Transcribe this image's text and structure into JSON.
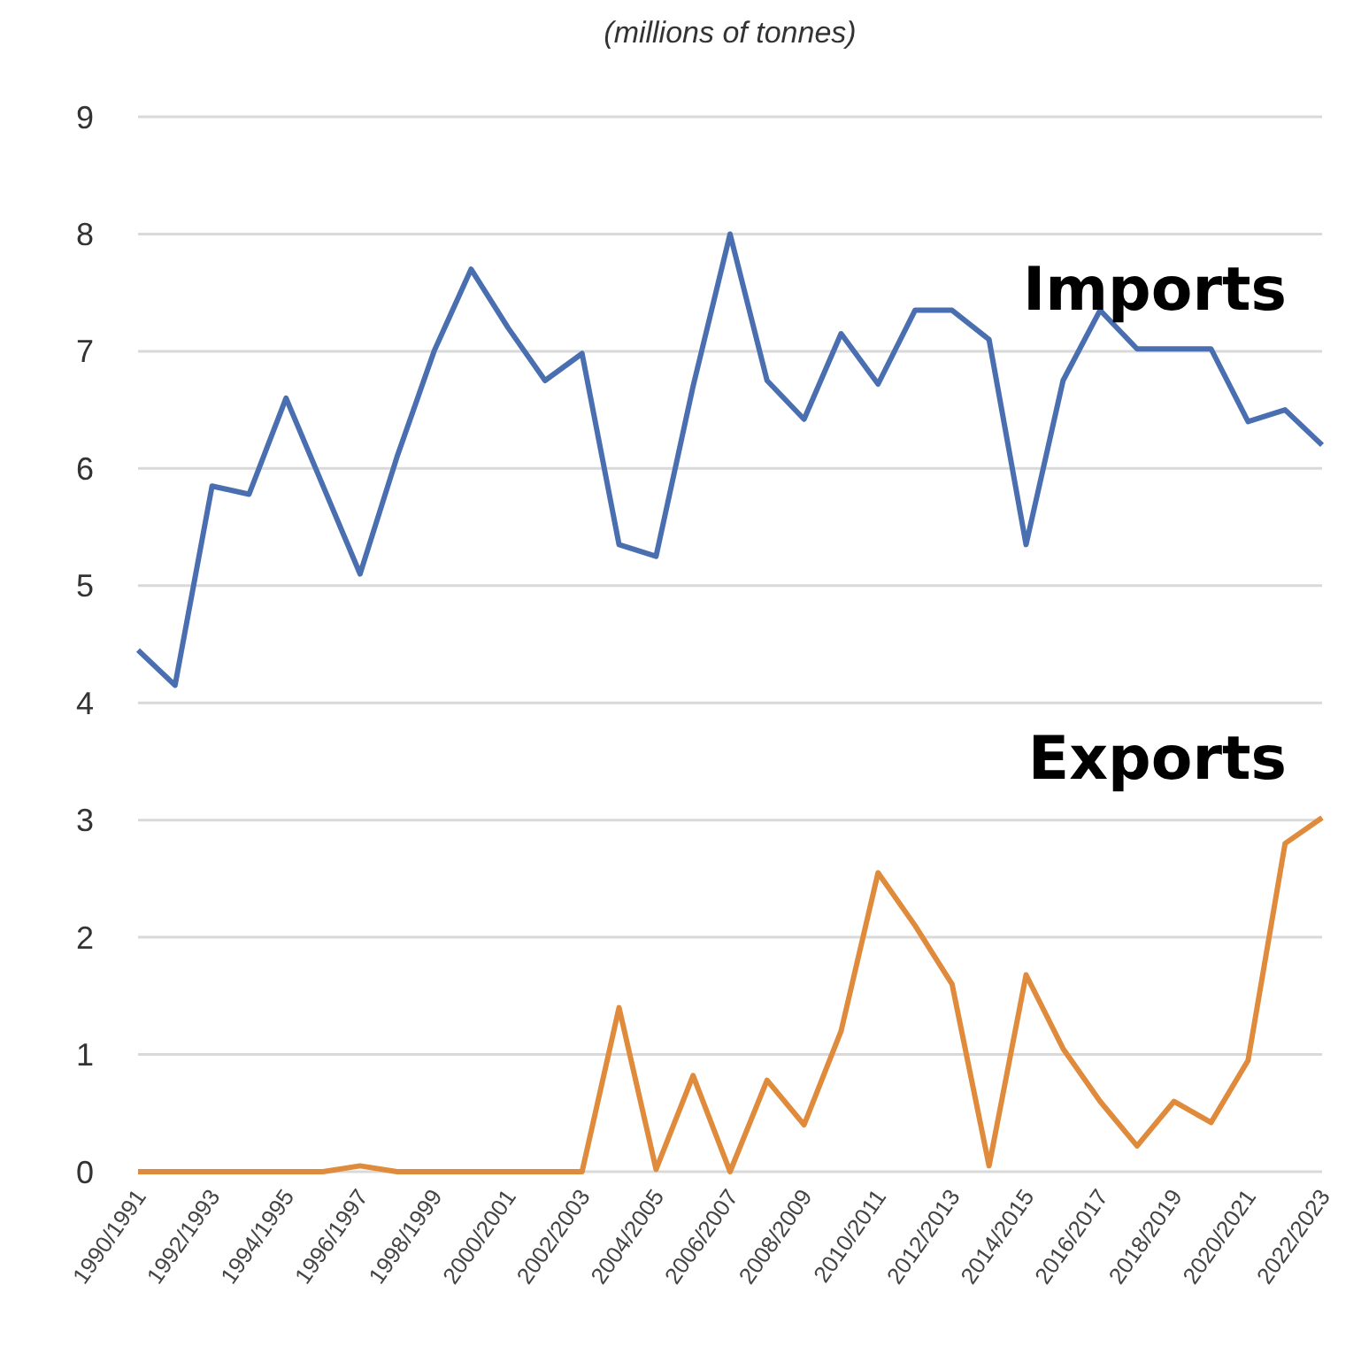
{
  "chart_data": {
    "type": "line",
    "title": "(millions of tonnes)",
    "categories": [
      "1990/1991",
      null,
      "1992/1993",
      null,
      "1994/1995",
      null,
      "1996/1997",
      null,
      "1998/1999",
      null,
      "2000/2001",
      null,
      "2002/2003",
      null,
      "2004/2005",
      null,
      "2006/2007",
      null,
      "2008/2009",
      null,
      "2010/2011",
      null,
      "2012/2013",
      null,
      "2014/2015",
      null,
      "2016/2017",
      null,
      "2018/2019",
      null,
      "2020/2021",
      null,
      "2022/2023"
    ],
    "series": [
      {
        "name": "Imports",
        "color": "#4a6fb0",
        "values": [
          4.45,
          4.15,
          5.85,
          5.78,
          6.6,
          5.85,
          5.1,
          6.1,
          7.0,
          7.7,
          7.2,
          6.75,
          6.98,
          5.35,
          5.25,
          6.7,
          8.0,
          6.75,
          6.42,
          7.15,
          6.72,
          7.35,
          7.35,
          7.1,
          5.35,
          6.75,
          7.35,
          7.02,
          7.02,
          7.02,
          6.4,
          6.5,
          6.2
        ]
      },
      {
        "name": "Exports",
        "color": "#e08a3c",
        "values": [
          0,
          0,
          0,
          0,
          0,
          0,
          0.05,
          0,
          0,
          0,
          0,
          0,
          0,
          1.4,
          0.02,
          0.82,
          0,
          0.78,
          0.4,
          1.2,
          2.55,
          2.1,
          1.6,
          0.05,
          1.68,
          1.05,
          0.6,
          0.22,
          0.6,
          0.42,
          0.95,
          2.8,
          3.02
        ]
      }
    ],
    "ylim": [
      0,
      9
    ],
    "yticks": [
      0,
      1,
      2,
      3,
      4,
      5,
      6,
      7,
      8,
      9
    ],
    "grid": "y",
    "legend": false,
    "marker": "none",
    "line_style": "solid"
  }
}
